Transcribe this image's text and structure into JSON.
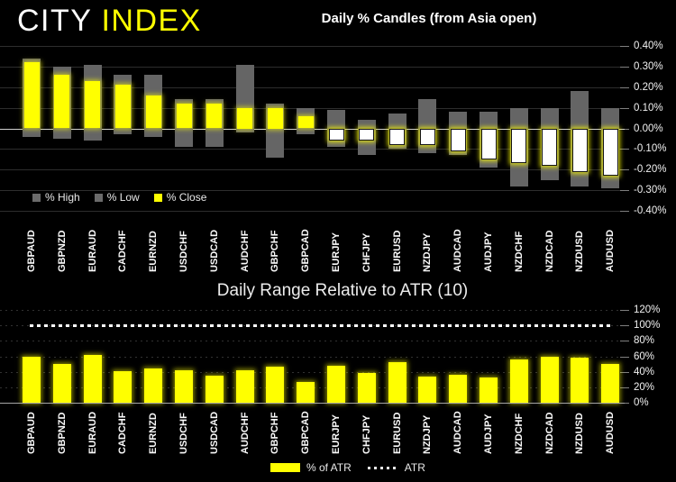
{
  "logo": {
    "city": "CITY",
    "index": "INDEX"
  },
  "candles_chart": {
    "title": "Daily % Candles (from Asia open)",
    "legend": [
      {
        "label": "% High",
        "color": "#6b6b6b"
      },
      {
        "label": "% Low",
        "color": "#6b6b6b"
      },
      {
        "label": "% Close",
        "color": "#ffff00"
      }
    ]
  },
  "atr_chart": {
    "title": "Daily Range Relative to ATR (10)",
    "legend": [
      {
        "label": "% of ATR",
        "swatch": "yellow-bar"
      },
      {
        "label": "ATR",
        "swatch": "dotted-line"
      }
    ]
  },
  "chart_data": [
    {
      "type": "bar",
      "title": "Daily % Candles (from Asia open)",
      "categories": [
        "GBPAUD",
        "GBPNZD",
        "EURAUD",
        "CADCHF",
        "EURNZD",
        "USDCHF",
        "USDCAD",
        "AUDCHF",
        "GBPCHF",
        "GBPCAD",
        "EURJPY",
        "CHFJPY",
        "EURUSD",
        "NZDJPY",
        "AUDCAD",
        "AUDJPY",
        "NZDCHF",
        "NZDCAD",
        "NZDUSD",
        "AUDUSD"
      ],
      "series": [
        {
          "name": "% High",
          "values": [
            0.34,
            0.3,
            0.31,
            0.26,
            0.26,
            0.14,
            0.14,
            0.31,
            0.12,
            0.1,
            0.09,
            0.04,
            0.07,
            0.14,
            0.08,
            0.08,
            0.1,
            0.1,
            0.18,
            0.1
          ]
        },
        {
          "name": "% Low",
          "values": [
            -0.04,
            -0.05,
            -0.06,
            -0.03,
            -0.04,
            -0.09,
            -0.09,
            -0.02,
            -0.14,
            -0.03,
            -0.09,
            -0.13,
            -0.1,
            -0.12,
            -0.13,
            -0.19,
            -0.28,
            -0.25,
            -0.28,
            -0.29
          ]
        },
        {
          "name": "% Close",
          "values": [
            0.32,
            0.26,
            0.23,
            0.21,
            0.16,
            0.12,
            0.12,
            0.1,
            0.1,
            0.06,
            -0.06,
            -0.06,
            -0.08,
            -0.08,
            -0.11,
            -0.15,
            -0.17,
            -0.18,
            -0.21,
            -0.23
          ]
        }
      ],
      "ylim": [
        -0.4,
        0.4
      ],
      "y_ticks": [
        "0.40%",
        "0.30%",
        "0.20%",
        "0.10%",
        "0.00%",
        "-0.10%",
        "-0.20%",
        "-0.30%",
        "-0.40%"
      ],
      "y_tick_values": [
        0.4,
        0.3,
        0.2,
        0.1,
        0.0,
        -0.1,
        -0.2,
        -0.3,
        -0.4
      ],
      "grid": true,
      "legend_position": "bottom-left-inside",
      "up_color": "#ffff00",
      "down_color": "#ffffff",
      "range_color": "#656565"
    },
    {
      "type": "bar",
      "title": "Daily Range Relative to ATR (10)",
      "categories": [
        "GBPAUD",
        "GBPNZD",
        "EURAUD",
        "CADCHF",
        "EURNZD",
        "USDCHF",
        "USDCAD",
        "AUDCHF",
        "GBPCHF",
        "GBPCAD",
        "EURJPY",
        "CHFJPY",
        "EURUSD",
        "NZDJPY",
        "AUDCAD",
        "AUDJPY",
        "NZDCHF",
        "NZDCAD",
        "NZDUSD",
        "AUDUSD"
      ],
      "series": [
        {
          "name": "% of ATR",
          "values": [
            59,
            50,
            62,
            41,
            44,
            42,
            35,
            42,
            47,
            27,
            48,
            38,
            52,
            34,
            36,
            33,
            56,
            59,
            58,
            50
          ]
        }
      ],
      "atr_line_value": 100,
      "ylim": [
        0,
        120
      ],
      "y_ticks": [
        "120%",
        "100%",
        "80%",
        "60%",
        "40%",
        "20%",
        "0%"
      ],
      "y_tick_values": [
        120,
        100,
        80,
        60,
        40,
        20,
        0
      ],
      "grid": true,
      "legend_position": "bottom-center",
      "bar_color": "#ffff00",
      "atr_line_color": "#ffffff"
    }
  ],
  "colors": {
    "background": "#000000",
    "accent_yellow": "#ffff00",
    "range_gray": "#656565",
    "candle_up": "#ffff00",
    "candle_down": "#ffffff",
    "zero_line": "#cfcfcf",
    "atr_line": "#ffffff"
  }
}
